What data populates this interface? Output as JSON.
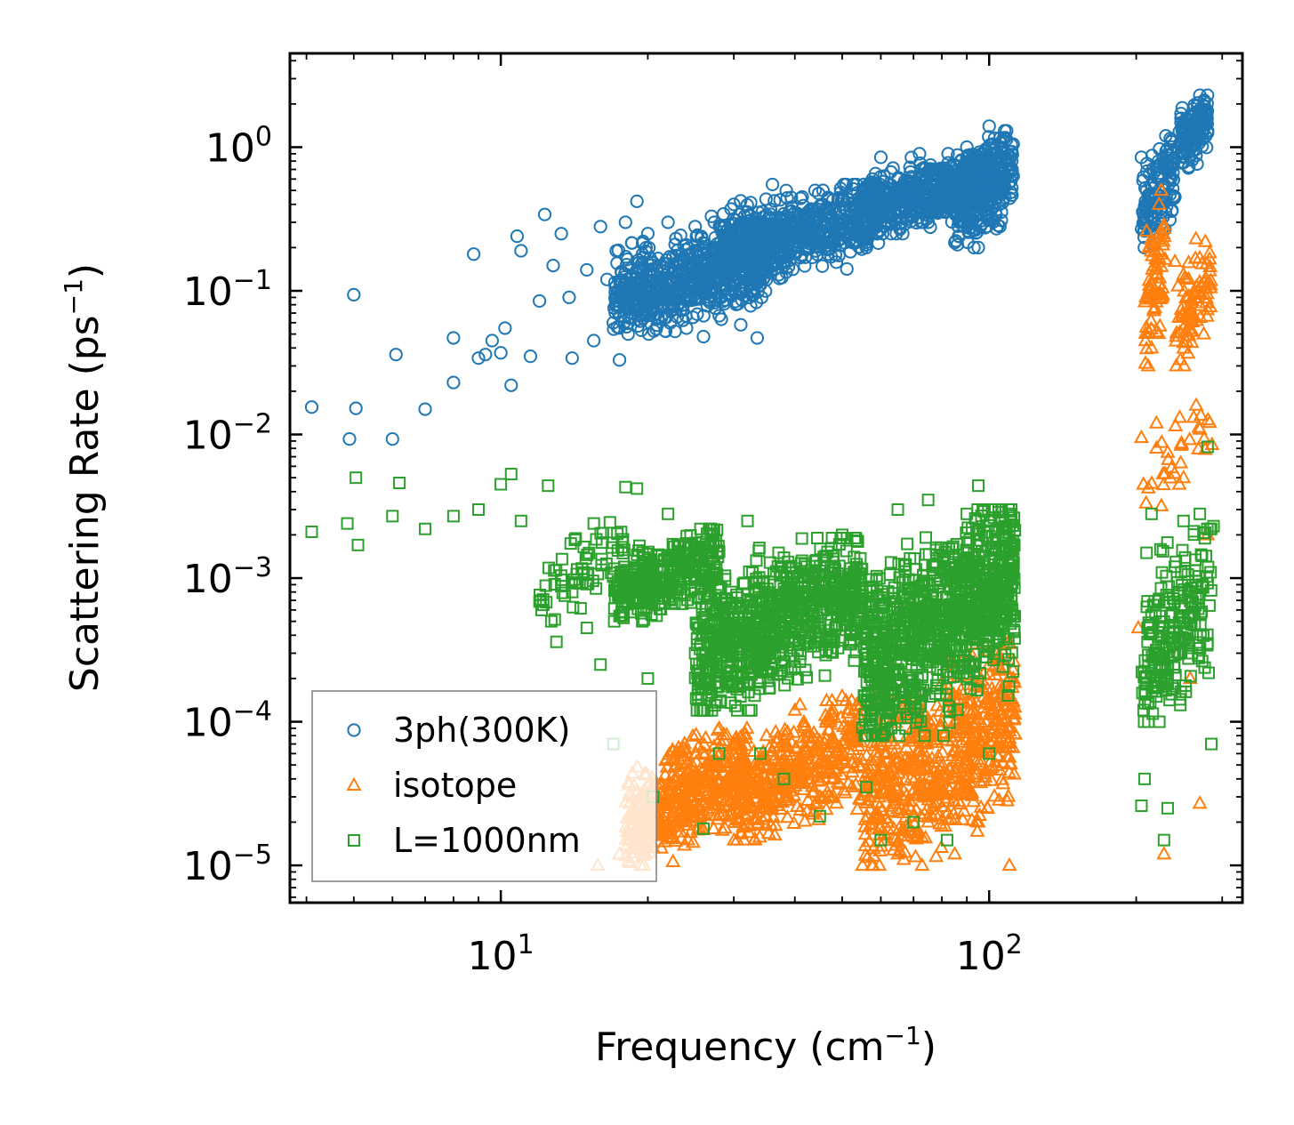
{
  "chart_data": {
    "type": "scatter",
    "xscale": "log",
    "yscale": "log",
    "xlabel": {
      "base": "Frequency (cm",
      "sup": "−1",
      "tail": ")"
    },
    "ylabel": {
      "base": "Scattering Rate (ps",
      "sup": "−1",
      "tail": ")"
    },
    "xlim": [
      3.7,
      330
    ],
    "ylim": [
      5.5e-06,
      4.5
    ],
    "x_ticks": [
      {
        "value": 10,
        "base": "10",
        "exp": "1"
      },
      {
        "value": 100,
        "base": "10",
        "exp": "2"
      }
    ],
    "y_ticks": [
      {
        "value": 1e-05,
        "base": "10",
        "exp": "−5"
      },
      {
        "value": 0.0001,
        "base": "10",
        "exp": "−4"
      },
      {
        "value": 0.001,
        "base": "10",
        "exp": "−3"
      },
      {
        "value": 0.01,
        "base": "10",
        "exp": "−2"
      },
      {
        "value": 0.1,
        "base": "10",
        "exp": "−1"
      },
      {
        "value": 1,
        "base": "10",
        "exp": "0"
      }
    ],
    "legend": {
      "position": "lower-left"
    },
    "series": [
      {
        "name": "3ph(300K)",
        "marker": "circle",
        "color": "#1f77b4",
        "points": [
          [
            4.1,
            0.0155
          ],
          [
            4.9,
            0.0093
          ],
          [
            5.0,
            0.094
          ],
          [
            5.05,
            0.0152
          ],
          [
            6.0,
            0.0093
          ],
          [
            6.1,
            0.036
          ],
          [
            7.0,
            0.015
          ],
          [
            8.0,
            0.023
          ],
          [
            8.0,
            0.047
          ],
          [
            8.8,
            0.18
          ],
          [
            9.0,
            0.034
          ],
          [
            9.3,
            0.036
          ],
          [
            9.6,
            0.045
          ],
          [
            10.0,
            0.037
          ],
          [
            10.2,
            0.055
          ],
          [
            10.5,
            0.022
          ],
          [
            10.8,
            0.24
          ],
          [
            11.0,
            0.19
          ],
          [
            11.5,
            0.035
          ],
          [
            12.0,
            0.085
          ],
          [
            12.3,
            0.34
          ],
          [
            12.8,
            0.15
          ],
          [
            13.3,
            0.25
          ],
          [
            13.8,
            0.09
          ],
          [
            14.0,
            0.034
          ],
          [
            15.0,
            0.14
          ],
          [
            15.5,
            0.045
          ],
          [
            16.0,
            0.28
          ],
          [
            16.5,
            0.12
          ],
          [
            17.0,
            0.06
          ],
          [
            17.5,
            0.033
          ],
          [
            18.0,
            0.3
          ],
          [
            18.5,
            0.07
          ],
          [
            19.0,
            0.42
          ],
          [
            19.5,
            0.18
          ],
          [
            20.0,
            0.25
          ],
          [
            21.0,
            0.065
          ],
          [
            22.0,
            0.3
          ],
          [
            23.0,
            0.15
          ],
          [
            24.0,
            0.055
          ],
          [
            25.0,
            0.28
          ],
          [
            26.0,
            0.048
          ],
          [
            27.0,
            0.33
          ],
          [
            28.0,
            0.09
          ],
          [
            30.0,
            0.4
          ],
          [
            31.0,
            0.058
          ],
          [
            33.0,
            0.3
          ],
          [
            33.5,
            0.047
          ],
          [
            35.0,
            0.2
          ],
          [
            36.0,
            0.55
          ],
          [
            38.0,
            0.15
          ],
          [
            40.0,
            0.35
          ],
          [
            42.0,
            0.22
          ],
          [
            44.0,
            0.5
          ],
          [
            46.0,
            0.3
          ],
          [
            50.0,
            0.45
          ],
          [
            52.0,
            0.25
          ],
          [
            55.0,
            0.5
          ],
          [
            58.0,
            0.35
          ],
          [
            60.0,
            0.85
          ],
          [
            62.0,
            0.3
          ],
          [
            65.0,
            0.6
          ],
          [
            70.0,
            0.4
          ],
          [
            72.0,
            0.9
          ],
          [
            75.0,
            0.3
          ],
          [
            80.0,
            0.6
          ],
          [
            85.0,
            0.75
          ],
          [
            88.0,
            0.3
          ],
          [
            90.0,
            1.0
          ],
          [
            95.0,
            0.2
          ],
          [
            98.0,
            0.5
          ],
          [
            100.0,
            1.4
          ],
          [
            105.0,
            0.4
          ],
          [
            110.0,
            0.75
          ],
          [
            112.0,
            1.05
          ],
          [
            205.0,
            0.85
          ],
          [
            210.0,
            0.5
          ],
          [
            215.0,
            0.3
          ],
          [
            220.0,
            0.7
          ],
          [
            230.0,
            1.2
          ],
          [
            240.0,
            0.45
          ],
          [
            250.0,
            1.5
          ],
          [
            260.0,
            1.0
          ],
          [
            270.0,
            2.3
          ],
          [
            280.0,
            1.3
          ]
        ],
        "clusters": [
          {
            "x": [
              17,
              35
            ],
            "y": [
              0.05,
              0.3
            ],
            "n": 650
          },
          {
            "x": [
              28,
              60
            ],
            "y": [
              0.12,
              0.55
            ],
            "n": 650
          },
          {
            "x": [
              55,
              100
            ],
            "y": [
              0.25,
              0.9
            ],
            "n": 550
          },
          {
            "x": [
              85,
              112
            ],
            "y": [
              0.2,
              1.3
            ],
            "n": 300
          },
          {
            "x": [
              205,
              240
            ],
            "y": [
              0.2,
              1.2
            ],
            "n": 120
          },
          {
            "x": [
              245,
              280
            ],
            "y": [
              0.7,
              2.3
            ],
            "n": 140
          }
        ]
      },
      {
        "name": "isotope",
        "marker": "triangle",
        "color": "#ff7f0e",
        "points": [
          [
            15.8,
            1e-05
          ],
          [
            17.5,
            1.2e-05
          ],
          [
            19.0,
            1.5e-05
          ],
          [
            22.0,
            2.5e-05
          ],
          [
            25.0,
            6e-05
          ],
          [
            28.0,
            9e-05
          ],
          [
            30.0,
            4e-05
          ],
          [
            35.0,
            8e-05
          ],
          [
            40.0,
            0.00012
          ],
          [
            45.0,
            3e-05
          ],
          [
            50.0,
            0.00015
          ],
          [
            55.0,
            1e-05
          ],
          [
            60.0,
            0.0002
          ],
          [
            65.0,
            1.2e-05
          ],
          [
            70.0,
            0.00015
          ],
          [
            75.0,
            2e-05
          ],
          [
            80.0,
            0.0001
          ],
          [
            85.0,
            1.2e-05
          ],
          [
            90.0,
            0.0003
          ],
          [
            95.0,
            2e-05
          ],
          [
            100.0,
            0.00025
          ],
          [
            110.0,
            1e-05
          ],
          [
            112.0,
            0.0002
          ],
          [
            202.0,
            0.00045
          ],
          [
            205.0,
            0.0095
          ],
          [
            207.0,
            0.0045
          ],
          [
            210.0,
            0.26
          ],
          [
            215.0,
            0.04
          ],
          [
            220.0,
            0.012
          ],
          [
            225.0,
            0.5
          ],
          [
            228.0,
            1.2e-05
          ],
          [
            232.0,
            0.0075
          ],
          [
            240.0,
            0.16
          ],
          [
            245.0,
            0.0045
          ],
          [
            250.0,
            0.005
          ],
          [
            258.0,
            0.0002
          ],
          [
            265.0,
            0.23
          ],
          [
            270.0,
            2.7e-05
          ],
          [
            275.0,
            0.05
          ],
          [
            280.0,
            0.002
          ],
          [
            284.0,
            0.11
          ],
          [
            286.0,
            0.0085
          ]
        ],
        "clusters": [
          {
            "x": [
              18,
              32
            ],
            "y": [
              1e-05,
              9e-05
            ],
            "n": 500
          },
          {
            "x": [
              30,
              55
            ],
            "y": [
              1.5e-05,
              0.00014
            ],
            "n": 400
          },
          {
            "x": [
              55,
              113
            ],
            "y": [
              1e-05,
              0.00035
            ],
            "n": 650
          },
          {
            "x": [
              208,
              230
            ],
            "y": [
              0.03,
              0.4
            ],
            "n": 70
          },
          {
            "x": [
              240,
              285
            ],
            "y": [
              0.03,
              0.22
            ],
            "n": 80
          },
          {
            "x": [
              205,
              285
            ],
            "y": [
              0.002,
              0.03
            ],
            "n": 30
          }
        ]
      },
      {
        "name": "L=1000nm",
        "marker": "square",
        "color": "#2ca02c",
        "points": [
          [
            4.1,
            0.0021
          ],
          [
            4.85,
            0.0024
          ],
          [
            5.05,
            0.005
          ],
          [
            5.1,
            0.0017
          ],
          [
            6.0,
            0.0027
          ],
          [
            6.2,
            0.0046
          ],
          [
            7.0,
            0.0022
          ],
          [
            8.0,
            0.0027
          ],
          [
            9.0,
            0.003
          ],
          [
            10.0,
            0.0045
          ],
          [
            10.5,
            0.0053
          ],
          [
            11.0,
            0.0025
          ],
          [
            12.5,
            0.0044
          ],
          [
            13.0,
            0.00036
          ],
          [
            14.0,
            0.0008
          ],
          [
            15.0,
            0.00045
          ],
          [
            15.5,
            0.0024
          ],
          [
            16.0,
            0.00025
          ],
          [
            17.0,
            7e-05
          ],
          [
            18.0,
            0.0043
          ],
          [
            19.0,
            0.0042
          ],
          [
            20.0,
            0.0002
          ],
          [
            20.5,
            3e-05
          ],
          [
            22.0,
            0.0028
          ],
          [
            25.0,
            0.0003
          ],
          [
            26.0,
            1.8e-05
          ],
          [
            28.0,
            6e-05
          ],
          [
            32.0,
            0.0025
          ],
          [
            34.0,
            6e-05
          ],
          [
            38.0,
            4e-05
          ],
          [
            42.0,
            0.0012
          ],
          [
            45.0,
            2.2e-05
          ],
          [
            50.0,
            0.002
          ],
          [
            56.0,
            3.5e-05
          ],
          [
            60.0,
            1.5e-05
          ],
          [
            65.0,
            0.003
          ],
          [
            70.0,
            2e-05
          ],
          [
            75.0,
            0.0035
          ],
          [
            82.0,
            1.5e-05
          ],
          [
            90.0,
            0.0028
          ],
          [
            95.0,
            0.0044
          ],
          [
            100.0,
            6e-05
          ],
          [
            108.0,
            0.0023
          ],
          [
            112.0,
            0.0018
          ],
          [
            205.0,
            2.6e-05
          ],
          [
            208.0,
            4e-05
          ],
          [
            210.0,
            0.0015
          ],
          [
            215.0,
            0.0028
          ],
          [
            220.0,
            0.00015
          ],
          [
            228.0,
            1.5e-05
          ],
          [
            232.0,
            2.5e-05
          ],
          [
            240.0,
            0.0012
          ],
          [
            250.0,
            0.0025
          ],
          [
            260.0,
            0.0003
          ],
          [
            270.0,
            0.0028
          ],
          [
            280.0,
            0.0082
          ],
          [
            285.0,
            7e-05
          ],
          [
            288.0,
            0.0023
          ]
        ],
        "clusters": [
          {
            "x": [
              17,
              28
            ],
            "y": [
              0.0005,
              0.0022
            ],
            "n": 350
          },
          {
            "x": [
              25,
              55
            ],
            "y": [
              0.00012,
              0.0019
            ],
            "n": 850
          },
          {
            "x": [
              55,
              113
            ],
            "y": [
              8e-05,
              0.003
            ],
            "n": 1000
          },
          {
            "x": [
              12,
              18
            ],
            "y": [
              0.0005,
              0.0025
            ],
            "n": 70
          },
          {
            "x": [
              205,
              285
            ],
            "y": [
              0.0001,
              0.0022
            ],
            "n": 220
          }
        ]
      }
    ]
  }
}
